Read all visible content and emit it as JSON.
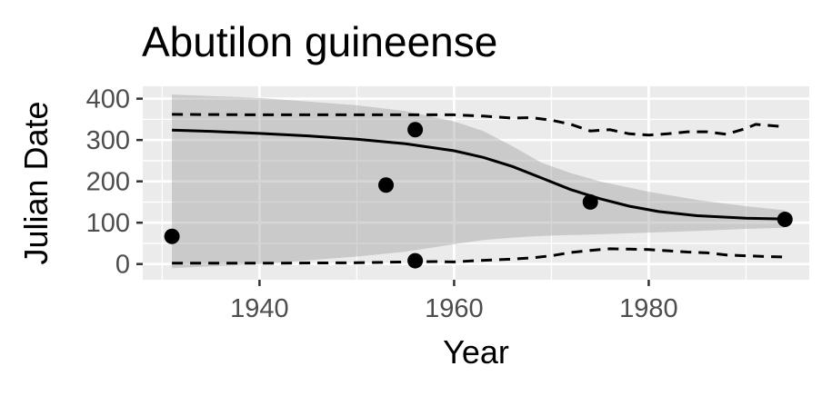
{
  "chart_data": {
    "type": "scatter",
    "title": "Abutilon guineense",
    "xlabel": "Year",
    "ylabel": "Julian Date",
    "xlim": [
      1928,
      1996.5
    ],
    "ylim": [
      -38,
      430
    ],
    "x_ticks": [
      1940,
      1960,
      1980
    ],
    "x_tick_labels": [
      "1940",
      "1960",
      "1980"
    ],
    "y_ticks": [
      0,
      100,
      200,
      300,
      400
    ],
    "y_tick_labels": [
      "0",
      "100",
      "200",
      "300",
      "400"
    ],
    "grid": true,
    "legend": "none",
    "points": [
      {
        "x": 1931,
        "y": 67
      },
      {
        "x": 1953,
        "y": 191
      },
      {
        "x": 1956,
        "y": 325
      },
      {
        "x": 1956,
        "y": 8
      },
      {
        "x": 1974,
        "y": 150
      },
      {
        "x": 1994,
        "y": 108
      }
    ],
    "fit_line": {
      "x": [
        1931,
        1935,
        1940,
        1945,
        1950,
        1955,
        1960,
        1963,
        1966,
        1969,
        1972,
        1975,
        1978,
        1981,
        1985,
        1990,
        1994
      ],
      "y": [
        324,
        321,
        316,
        310,
        302,
        291,
        274,
        258,
        236,
        208,
        180,
        158,
        140,
        127,
        117,
        111,
        109
      ]
    },
    "confidence_band": {
      "x": [
        1931,
        1940,
        1950,
        1955,
        1960,
        1963,
        1966,
        1969,
        1972,
        1975,
        1980,
        1985,
        1990,
        1994
      ],
      "upper": [
        410,
        402,
        384,
        370,
        345,
        322,
        285,
        245,
        220,
        200,
        175,
        155,
        140,
        130
      ],
      "lower": [
        -10,
        0,
        18,
        30,
        48,
        58,
        64,
        68,
        70,
        72,
        76,
        80,
        85,
        88
      ]
    },
    "upper_dashed": {
      "x": [
        1931,
        1940,
        1950,
        1955,
        1960,
        1963,
        1966,
        1968,
        1970,
        1972,
        1974,
        1976,
        1978,
        1980,
        1982,
        1984,
        1986,
        1988,
        1990,
        1991,
        1992,
        1994
      ],
      "y": [
        362,
        361,
        361,
        361,
        361,
        358,
        353,
        354,
        348,
        338,
        322,
        325,
        315,
        312,
        315,
        320,
        320,
        314,
        328,
        338,
        336,
        332
      ]
    },
    "lower_dashed": {
      "x": [
        1931,
        1940,
        1950,
        1955,
        1958,
        1960,
        1962,
        1964,
        1966,
        1968,
        1970,
        1972,
        1974,
        1976,
        1978,
        1980,
        1982,
        1984,
        1986,
        1988,
        1990,
        1992,
        1994
      ],
      "y": [
        2,
        2,
        3,
        5,
        6,
        5,
        8,
        10,
        12,
        15,
        20,
        28,
        33,
        37,
        36,
        35,
        32,
        29,
        27,
        22,
        20,
        18,
        17
      ]
    },
    "colors": {
      "panel_background": "#ebebeb",
      "grid_major": "#ffffff",
      "band": "#999999",
      "line": "#000000",
      "points": "#000000",
      "tick_label": "#4d4d4d"
    }
  }
}
